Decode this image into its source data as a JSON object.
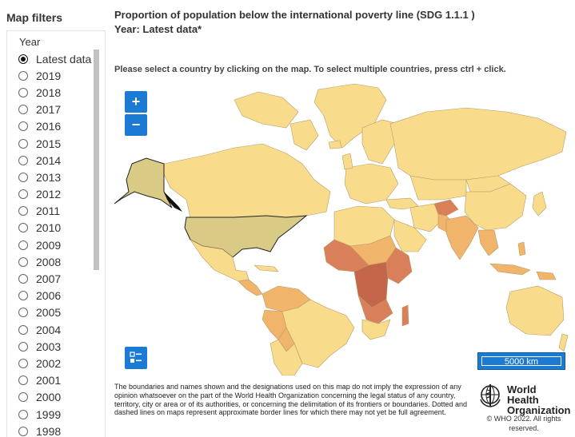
{
  "sidebar": {
    "title": "Map filters",
    "filter_label": "Year",
    "years": [
      "Latest data",
      "2019",
      "2018",
      "2017",
      "2016",
      "2015",
      "2014",
      "2013",
      "2012",
      "2011",
      "2010",
      "2009",
      "2008",
      "2007",
      "2006",
      "2005",
      "2004",
      "2003",
      "2002",
      "2001",
      "2000",
      "1999",
      "1998"
    ],
    "selected": "Latest data"
  },
  "map": {
    "title_line1": "Proportion of population below the international poverty line (SDG 1.1.1 )",
    "title_line2": "Year: Latest data*",
    "instruction": "Please select a country by clicking on the map. To select multiple countries, press ctrl + click.",
    "zoom_in_label": "+",
    "zoom_out_label": "−",
    "scale_label": "5000 km",
    "colors": {
      "low": "#f8dc8c",
      "mid": "#f0b46a",
      "high": "#d9805a",
      "highest": "#c4664a",
      "selected": "#d9cb85",
      "no_data": "#ffffff"
    }
  },
  "footer": {
    "disclaimer": "The boundaries and names shown and the designations used on this map do not imply the expression of any opinion whatsoever on the part of the World Health Organization concerning the legal status of any country, territory, city or area or of its authorities, or concerning the delimitation of its frontiers or boundaries. Dotted and dashed lines on maps represent approximate border lines for which there may not yet be full agreement.",
    "org_line1": "World Health",
    "org_line2": "Organization",
    "copyright": "© WHO 2022. All rights reserved."
  }
}
